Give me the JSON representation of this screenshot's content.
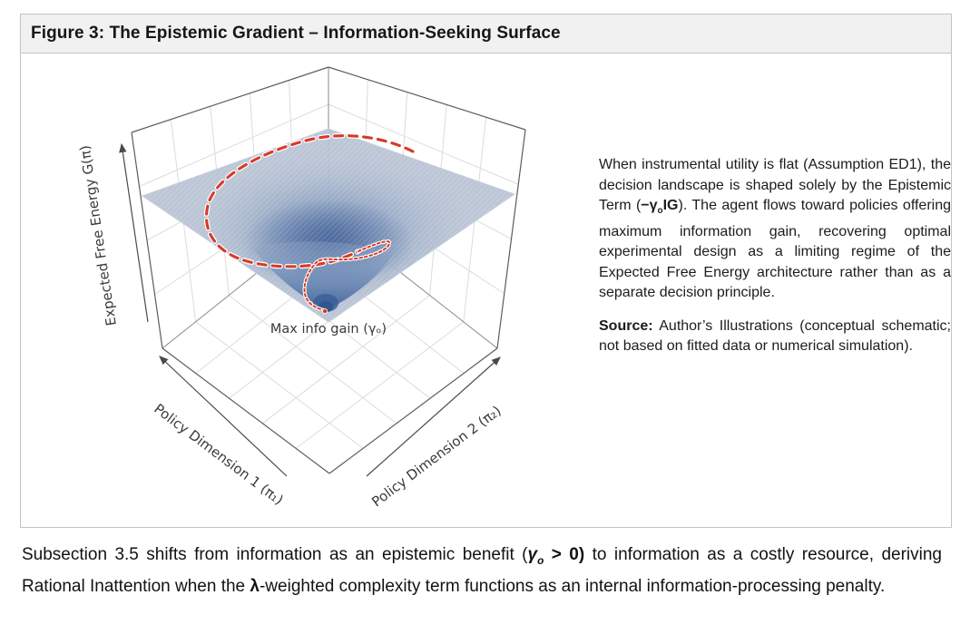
{
  "figure": {
    "title": "Figure 3: The Epistemic Gradient – Information-Seeking Surface",
    "plot": {
      "zlabel": "Expected Free Energy G(π)",
      "xlabel": "Policy Dimension 1 (π₁)",
      "ylabel": "Policy Dimension 2 (π₂)",
      "annotation": "Max info gain (γₒ)",
      "colors": {
        "trajectory_red": "#d73a28",
        "surface_light": "#b7c2d3",
        "well_mid": "#7b97c0",
        "well_deep": "#3e5f98",
        "box_edge": "#5d5d5d",
        "gridline": "#dcdcdc"
      }
    },
    "commentary": [
      {
        "text": "When instrumental utility is flat (Assumption ED1), the decision landscape is shaped solely by the Epistemic Term ("
      },
      {
        "text": "−γ",
        "bold": true
      },
      {
        "text": "o",
        "bold": true,
        "sub": true
      },
      {
        "text": "IG",
        "bold": true
      },
      {
        "text": "). The agent flows toward policies offering maximum information gain, recovering optimal experimental design as a limiting regime of the Expected Free Energy architecture rather than as a separate decision principle."
      }
    ],
    "source": [
      {
        "text": "Source:",
        "bold": true
      },
      {
        "text": " Author’s Illustrations (conceptual schematic; not based on fitted data or numerical simulation)."
      }
    ]
  },
  "caption": [
    {
      "text": "Subsection 3.5 shifts from information as an epistemic benefit ("
    },
    {
      "text": "γ",
      "bold": true,
      "italic": true
    },
    {
      "text": "o",
      "bold": true,
      "italic": true,
      "sub": true
    },
    {
      "text": " > 0",
      "bold": true
    },
    {
      "text": ")",
      "bold": true
    },
    {
      "text": " to information as a costly resource, deriving Rational Inattention when the "
    },
    {
      "text": "λ",
      "bold": true
    },
    {
      "text": "-weighted complexity term functions as an internal information-processing penalty."
    }
  ],
  "chart_data": {
    "type": "surface",
    "title": "",
    "xlabel": "Policy Dimension 1 (π₁)",
    "ylabel": "Policy Dimension 2 (π₂)",
    "zlabel": "Expected Free Energy G(π)",
    "tick_labels": "none (conceptual schematic, unlabeled axes)",
    "surface_shape": "flat plane at high G(π) with a central funnel-shaped depression (inverted-Gaussian well) descending to a global minimum",
    "minimum_annotation": "Max info gain (γₒ)",
    "trajectory": "red dashed spiral starting at the plane rim (upper right), circling inward counterclockwise and descending into the funnel to the minimum point",
    "legend": "none",
    "grid": true
  }
}
